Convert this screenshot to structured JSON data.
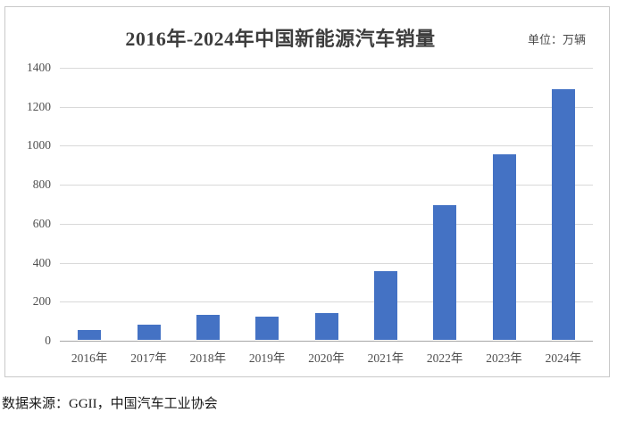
{
  "chart_data": {
    "type": "bar",
    "title": "2016年-2024年中国新能源汽车销量",
    "unit_label": "单位：万辆",
    "categories": [
      "2016年",
      "2017年",
      "2018年",
      "2019年",
      "2020年",
      "2021年",
      "2022年",
      "2023年",
      "2024年"
    ],
    "values": [
      51,
      78,
      126,
      121,
      137,
      352,
      689,
      950,
      1287
    ],
    "xlabel": "",
    "ylabel": "",
    "ylim": [
      0,
      1400
    ],
    "yticks": [
      0,
      200,
      400,
      600,
      800,
      1000,
      1200,
      1400
    ],
    "grid": true,
    "legend": "none",
    "bar_color": "#4472c4",
    "gridline_color": "#d9d9d9",
    "baseline_color": "#a6a6a6",
    "tick_text_color": "#4f4f4f",
    "title_color": "#3d3d3d"
  },
  "footer": {
    "source_text": "数据来源：GGII，中国汽车工业协会"
  }
}
